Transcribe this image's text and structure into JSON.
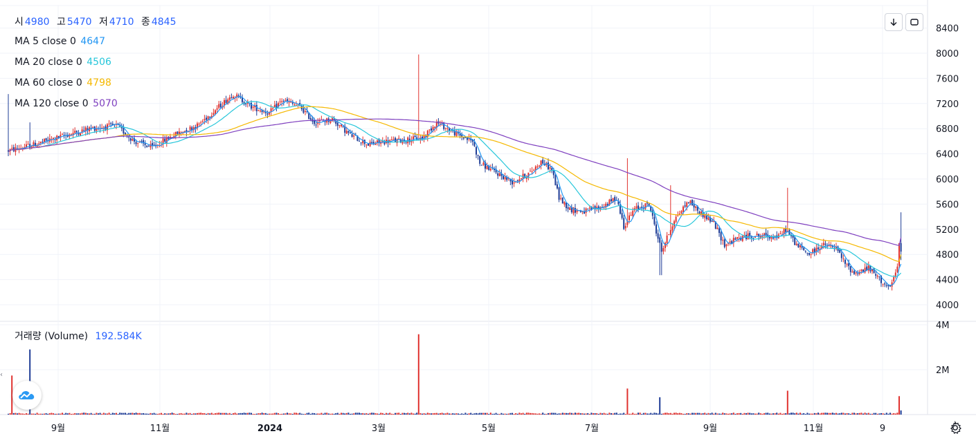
{
  "legend": {
    "ohlc": [
      {
        "label": "시",
        "value": "4980"
      },
      {
        "label": "고",
        "value": "5470"
      },
      {
        "label": "저",
        "value": "4710"
      },
      {
        "label": "종",
        "value": "4845"
      }
    ],
    "ma": [
      {
        "key": "ma5",
        "label": "MA 5 close 0",
        "value": "4647",
        "color": "#2196f3"
      },
      {
        "key": "ma20",
        "label": "MA 20 close 0",
        "value": "4506",
        "color": "#26c6da"
      },
      {
        "key": "ma60",
        "label": "MA 60 close 0",
        "value": "4798",
        "color": "#f5b800"
      },
      {
        "key": "ma120",
        "label": "MA 120 close 0",
        "value": "5070",
        "color": "#7e3fbf"
      }
    ],
    "volume": {
      "label": "거래량 (Volume)",
      "value": "192.584K"
    }
  },
  "icons": {
    "download": "download-arrow-icon",
    "fullscreen": "fullscreen-icon",
    "logo": "tradingview-cloud-icon",
    "settings": "gear-icon"
  },
  "colors": {
    "up": "#e0312e",
    "down": "#1e3c96",
    "grid": "#f0f3fa",
    "axis_text": "#131722"
  },
  "chart_data": [
    {
      "type": "candlestick",
      "price_axis": {
        "ticks": [
          4000,
          4400,
          4800,
          5200,
          5600,
          6000,
          6400,
          6800,
          7200,
          7600,
          8000,
          8400
        ],
        "ylim": [
          3640,
          8470
        ]
      },
      "time_axis": {
        "labels": [
          "9월",
          "11월",
          "2024",
          "3월",
          "5월",
          "7월",
          "9월",
          "11월",
          "9"
        ]
      },
      "series": [
        {
          "name": "MA 5 close 0",
          "last": 4647
        },
        {
          "name": "MA 20 close 0",
          "last": 4506
        },
        {
          "name": "MA 60 close 0",
          "last": 4798
        },
        {
          "name": "MA 120 close 0",
          "last": 5070
        }
      ],
      "anchors": [
        [
          0,
          6450
        ],
        [
          15,
          6550
        ],
        [
          30,
          6680
        ],
        [
          45,
          6800
        ],
        [
          60,
          6850
        ],
        [
          70,
          6600
        ],
        [
          80,
          6500
        ],
        [
          92,
          6700
        ],
        [
          105,
          6850
        ],
        [
          115,
          7100
        ],
        [
          125,
          7350
        ],
        [
          135,
          7150
        ],
        [
          145,
          7050
        ],
        [
          152,
          7250
        ],
        [
          162,
          7150
        ],
        [
          170,
          6900
        ],
        [
          180,
          6950
        ],
        [
          190,
          6700
        ],
        [
          200,
          6550
        ],
        [
          210,
          6600
        ],
        [
          220,
          6620
        ],
        [
          230,
          6650
        ],
        [
          238,
          6900
        ],
        [
          244,
          6800
        ],
        [
          250,
          6700
        ],
        [
          258,
          6600
        ],
        [
          262,
          6250
        ],
        [
          270,
          6120
        ],
        [
          280,
          5950
        ],
        [
          290,
          6100
        ],
        [
          296,
          6280
        ],
        [
          302,
          6150
        ],
        [
          306,
          5700
        ],
        [
          312,
          5520
        ],
        [
          320,
          5480
        ],
        [
          330,
          5560
        ],
        [
          338,
          5700
        ],
        [
          342,
          5250
        ],
        [
          348,
          5520
        ],
        [
          356,
          5600
        ],
        [
          363,
          4850
        ],
        [
          370,
          5350
        ],
        [
          378,
          5650
        ],
        [
          385,
          5450
        ],
        [
          392,
          5300
        ],
        [
          398,
          4950
        ],
        [
          405,
          5050
        ],
        [
          412,
          5100
        ],
        [
          418,
          5100
        ],
        [
          428,
          5080
        ],
        [
          432,
          5200
        ],
        [
          438,
          4950
        ],
        [
          445,
          4800
        ],
        [
          452,
          4950
        ],
        [
          460,
          4900
        ],
        [
          465,
          4650
        ],
        [
          470,
          4500
        ],
        [
          478,
          4580
        ],
        [
          485,
          4380
        ],
        [
          490,
          4250
        ],
        [
          494,
          4600
        ],
        [
          496,
          4845
        ]
      ],
      "volume": {
        "last": 192584,
        "ylim": [
          0,
          4200000
        ],
        "tick_labels": [
          "2M",
          "4M"
        ]
      }
    }
  ]
}
